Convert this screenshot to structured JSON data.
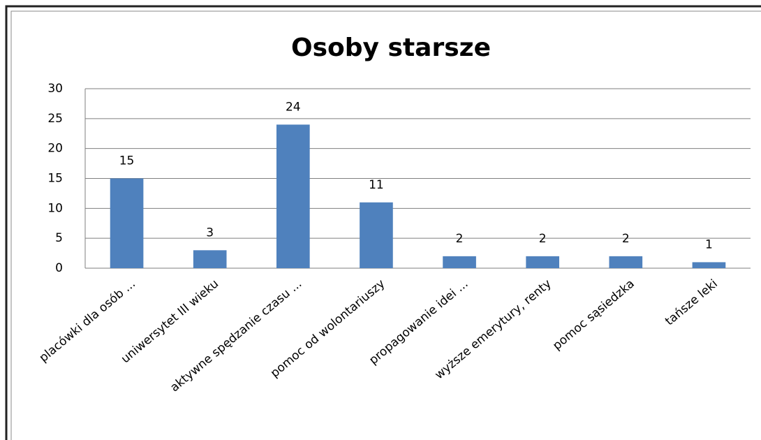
{
  "chart_data": {
    "type": "bar",
    "title": "Osoby starsze",
    "categories": [
      "placówki dla osób ...",
      "uniwersytet III wieku",
      "aktywne spędzanie czasu ...",
      "pomoc od wolontariuszy",
      "propagowanie idei ...",
      "wyższe emerytury, renty",
      "pomoc sąsiedzka",
      "tańsze leki"
    ],
    "values": [
      15,
      3,
      24,
      11,
      2,
      2,
      2,
      1
    ],
    "color": "#4f81bd",
    "ylim": [
      0,
      30
    ],
    "yticks": [
      0,
      5,
      10,
      15,
      20,
      25,
      30
    ],
    "grid": true
  }
}
